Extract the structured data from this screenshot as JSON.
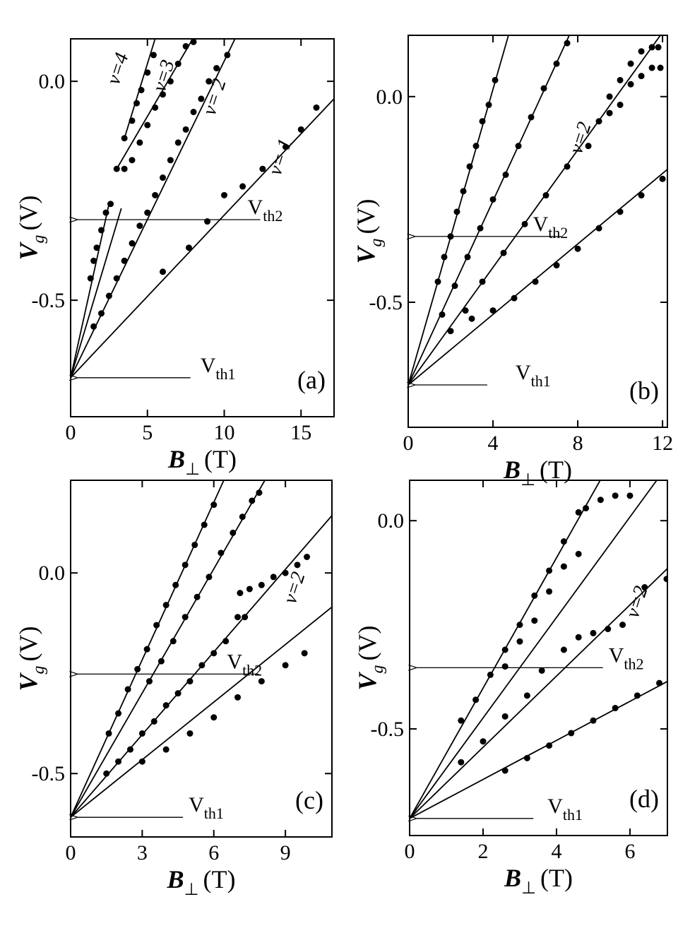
{
  "chart_data": [
    {
      "type": "scatter",
      "label": "(a)",
      "xlabel": [
        "B",
        "⊥",
        "(T)"
      ],
      "ylabel": [
        "V",
        "g",
        "(V)"
      ],
      "xlim": [
        0,
        17.15
      ],
      "ylim": [
        -0.766,
        0.097
      ],
      "xticks": [
        0,
        5,
        10,
        15
      ],
      "yticks": [
        {
          "value": -0.5,
          "label": "-0.5"
        },
        {
          "value": 0,
          "label": "0.0"
        }
      ],
      "notes": [
        "ν=4",
        "ν=3",
        "ν= 2",
        "ν= 1"
      ],
      "annotations": [
        {
          "text": [
            "V",
            "th1"
          ],
          "y": -0.677
        },
        {
          "text": [
            "V",
            "th2"
          ],
          "y": -0.316
        }
      ],
      "series": [
        {
          "mode": "markers",
          "color": "#000",
          "x": [
            6,
            7.7,
            8.9,
            10,
            11.2,
            12.5,
            14,
            15,
            16
          ],
          "values": [
            -0.435,
            -0.38,
            -0.32,
            -0.26,
            -0.24,
            -0.2,
            -0.15,
            -0.11,
            -0.06
          ]
        },
        {
          "mode": "markers",
          "color": "#000",
          "x": [
            1.5,
            2,
            2.5,
            3,
            3.5,
            4,
            4.5,
            5,
            5.5,
            6,
            6.5,
            7,
            7.5,
            8,
            8.5,
            9,
            9.5,
            10.2
          ],
          "values": [
            -0.56,
            -0.53,
            -0.49,
            -0.45,
            -0.41,
            -0.37,
            -0.33,
            -0.3,
            -0.26,
            -0.22,
            -0.18,
            -0.14,
            -0.11,
            -0.07,
            -0.04,
            0.0,
            0.03,
            0.06
          ]
        },
        {
          "mode": "markers",
          "color": "#000",
          "x": [
            3,
            3.5,
            4,
            4.5,
            5,
            5.5,
            6,
            6.5,
            7,
            7.5,
            8
          ],
          "values": [
            -0.2,
            -0.2,
            -0.18,
            -0.14,
            -0.1,
            -0.06,
            -0.03,
            0.0,
            0.04,
            0.08,
            0.09
          ]
        },
        {
          "mode": "markers",
          "color": "#000",
          "x": [
            3.5,
            4,
            4.3,
            4.6,
            5,
            5.4
          ],
          "values": [
            -0.13,
            -0.09,
            -0.05,
            -0.02,
            0.02,
            0.06
          ]
        },
        {
          "mode": "markers",
          "color": "#000",
          "x": [
            1.3,
            1.5,
            1.7,
            2,
            2.3,
            2.6
          ],
          "values": [
            -0.45,
            -0.41,
            -0.38,
            -0.34,
            -0.3,
            -0.28
          ]
        },
        {
          "mode": "line",
          "color": "#000",
          "x": [
            0,
            17.15
          ],
          "values": [
            -0.677,
            -0.04
          ]
        },
        {
          "mode": "line",
          "color": "#000",
          "x": [
            0,
            10.7
          ],
          "values": [
            -0.677,
            0.097
          ]
        },
        {
          "mode": "line",
          "color": "#000",
          "x": [
            0,
            3.3
          ],
          "values": [
            -0.677,
            -0.29
          ]
        },
        {
          "mode": "line",
          "color": "#000",
          "x": [
            0,
            2.5
          ],
          "values": [
            -0.677,
            -0.28
          ]
        },
        {
          "mode": "line",
          "color": "#000",
          "x": [
            3,
            7.95
          ],
          "values": [
            -0.2,
            0.097
          ]
        },
        {
          "mode": "line",
          "color": "#000",
          "x": [
            3.5,
            5.5
          ],
          "values": [
            -0.13,
            0.097
          ]
        }
      ]
    },
    {
      "type": "scatter",
      "label": "(b)",
      "xlabel": [
        "B",
        "⊥",
        "(T)"
      ],
      "ylabel": [
        "V",
        "g",
        "(V)"
      ],
      "xlim": [
        0,
        12.23
      ],
      "ylim": [
        -0.804,
        0.149
      ],
      "xticks": [
        0,
        4,
        8,
        12
      ],
      "yticks": [
        {
          "value": -0.5,
          "label": "-0.5"
        },
        {
          "value": 0,
          "label": "0.0"
        }
      ],
      "notes": [
        "ν=2"
      ],
      "annotations": [
        {
          "text": [
            "V",
            "th1"
          ],
          "y": -0.701
        },
        {
          "text": [
            "V",
            "th2"
          ],
          "y": -0.34
        }
      ],
      "series": [
        {
          "mode": "markers",
          "color": "#000",
          "x": [
            1.4,
            1.7,
            2,
            2.3,
            2.6,
            2.9,
            3.2,
            3.5,
            3.8,
            4.1
          ],
          "values": [
            -0.45,
            -0.39,
            -0.34,
            -0.28,
            -0.23,
            -0.17,
            -0.12,
            -0.06,
            -0.02,
            0.04
          ]
        },
        {
          "mode": "markers",
          "color": "#000",
          "x": [
            1.6,
            2.2,
            2.8,
            3.4,
            4,
            4.6,
            5.2,
            5.8,
            6.4,
            7,
            7.5
          ],
          "values": [
            -0.53,
            -0.46,
            -0.39,
            -0.32,
            -0.25,
            -0.19,
            -0.12,
            -0.05,
            0.02,
            0.08,
            0.13
          ]
        },
        {
          "mode": "markers",
          "color": "#000",
          "x": [
            2.7,
            3.5,
            4.5,
            5.5,
            6.5,
            7.5,
            8.5,
            9,
            9.5,
            10,
            10.5,
            11,
            11.5,
            11.9
          ],
          "values": [
            -0.52,
            -0.45,
            -0.38,
            -0.31,
            -0.24,
            -0.17,
            -0.12,
            -0.06,
            -0.04,
            -0.02,
            0.03,
            0.05,
            0.07,
            0.07
          ]
        },
        {
          "mode": "markers",
          "color": "#000",
          "x": [
            9.5,
            10,
            10.5,
            11,
            11.5,
            11.8
          ],
          "values": [
            0.0,
            0.04,
            0.08,
            0.11,
            0.12,
            0.12
          ]
        },
        {
          "mode": "markers",
          "color": "#000",
          "x": [
            2,
            3,
            4,
            5,
            6,
            7,
            8,
            9,
            10,
            11,
            12
          ],
          "values": [
            -0.57,
            -0.54,
            -0.52,
            -0.49,
            -0.45,
            -0.41,
            -0.37,
            -0.32,
            -0.28,
            -0.24,
            -0.2
          ]
        },
        {
          "mode": "line",
          "color": "#000",
          "x": [
            0,
            4.73
          ],
          "values": [
            -0.701,
            0.149
          ]
        },
        {
          "mode": "line",
          "color": "#000",
          "x": [
            0,
            7.6
          ],
          "values": [
            -0.701,
            0.149
          ]
        },
        {
          "mode": "line",
          "color": "#000",
          "x": [
            0,
            11.9
          ],
          "values": [
            -0.701,
            0.149
          ]
        },
        {
          "mode": "line",
          "color": "#000",
          "x": [
            0,
            12.23
          ],
          "values": [
            -0.701,
            -0.177
          ]
        }
      ]
    },
    {
      "type": "scatter",
      "label": "(c)",
      "xlabel": [
        "B",
        "⊥",
        "(T)"
      ],
      "ylabel": [
        "V",
        "g",
        "(V)"
      ],
      "xlim": [
        0,
        10.95
      ],
      "ylim": [
        -0.658,
        0.231
      ],
      "xticks": [
        0,
        3,
        6,
        9
      ],
      "yticks": [
        {
          "value": -0.5,
          "label": "-0.5"
        },
        {
          "value": 0,
          "label": "0.0"
        }
      ],
      "notes": [
        "ν=2"
      ],
      "annotations": [
        {
          "text": [
            "V",
            "th1"
          ],
          "y": -0.609
        },
        {
          "text": [
            "V",
            "th2"
          ],
          "y": -0.252
        }
      ],
      "series": [
        {
          "mode": "markers",
          "color": "#000",
          "x": [
            1.6,
            2,
            2.4,
            2.8,
            3.2,
            3.6,
            4,
            4.4,
            4.8,
            5.2,
            5.6,
            6
          ],
          "values": [
            -0.4,
            -0.35,
            -0.29,
            -0.24,
            -0.19,
            -0.13,
            -0.08,
            -0.03,
            0.02,
            0.07,
            0.12,
            0.17
          ]
        },
        {
          "mode": "markers",
          "color": "#000",
          "x": [
            3.3,
            3.8,
            4.3,
            4.8,
            5.3,
            5.8,
            6.3,
            6.8,
            7.2,
            7.6,
            7.9
          ],
          "values": [
            -0.27,
            -0.22,
            -0.17,
            -0.11,
            -0.06,
            -0.01,
            0.05,
            0.1,
            0.14,
            0.18,
            0.2
          ]
        },
        {
          "mode": "markers",
          "color": "#000",
          "x": [
            1.5,
            2,
            2.5,
            3,
            3.5,
            4,
            4.5,
            5,
            5.5,
            6,
            6.5,
            7,
            7.3
          ],
          "values": [
            -0.5,
            -0.47,
            -0.44,
            -0.4,
            -0.37,
            -0.33,
            -0.3,
            -0.27,
            -0.23,
            -0.2,
            -0.17,
            -0.11,
            -0.11
          ]
        },
        {
          "mode": "markers",
          "color": "#000",
          "x": [
            7.1,
            7.5,
            8,
            8.5,
            9,
            9.5,
            9.9
          ],
          "values": [
            -0.05,
            -0.04,
            -0.03,
            -0.01,
            0.0,
            0.02,
            0.04
          ]
        },
        {
          "mode": "markers",
          "color": "#000",
          "x": [
            3,
            4,
            5,
            6,
            7,
            8,
            9,
            9.8
          ],
          "values": [
            -0.47,
            -0.44,
            -0.4,
            -0.36,
            -0.31,
            -0.27,
            -0.23,
            -0.2
          ]
        },
        {
          "mode": "line",
          "color": "#000",
          "x": [
            0,
            6.42
          ],
          "values": [
            -0.609,
            0.231
          ]
        },
        {
          "mode": "line",
          "color": "#000",
          "x": [
            0,
            8.14
          ],
          "values": [
            -0.609,
            0.231
          ]
        },
        {
          "mode": "line",
          "color": "#000",
          "x": [
            0,
            10.95
          ],
          "values": [
            -0.609,
            0.143
          ]
        },
        {
          "mode": "line",
          "color": "#000",
          "x": [
            0,
            10.95
          ],
          "values": [
            -0.609,
            -0.085
          ]
        }
      ]
    },
    {
      "type": "scatter",
      "label": "(d)",
      "xlabel": [
        "B",
        "⊥",
        "(T)"
      ],
      "ylabel": [
        "V",
        "g",
        "(V)"
      ],
      "xlim": [
        0,
        7.02
      ],
      "ylim": [
        -0.756,
        0.097
      ],
      "xticks": [
        0,
        2,
        4,
        6
      ],
      "yticks": [
        {
          "value": -0.5,
          "label": "-0.5"
        },
        {
          "value": 0,
          "label": "0.0"
        }
      ],
      "notes": [
        "ν=2"
      ],
      "annotations": [
        {
          "text": [
            "V",
            "th1"
          ],
          "y": -0.715
        },
        {
          "text": [
            "V",
            "th2"
          ],
          "y": -0.353
        }
      ],
      "series": [
        {
          "mode": "markers",
          "color": "#000",
          "x": [
            1.4,
            1.8,
            2.2,
            2.6,
            3,
            3.4,
            3.8,
            4.2,
            4.6,
            4.8
          ],
          "values": [
            -0.48,
            -0.43,
            -0.37,
            -0.31,
            -0.25,
            -0.18,
            -0.12,
            -0.05,
            0.02,
            0.03
          ]
        },
        {
          "mode": "markers",
          "color": "#000",
          "x": [
            2.6,
            3,
            3.4,
            3.8,
            4.2,
            4.6,
            5.2,
            5.6,
            6
          ],
          "values": [
            -0.35,
            -0.29,
            -0.24,
            -0.17,
            -0.11,
            -0.08,
            0.05,
            0.06,
            0.06
          ]
        },
        {
          "mode": "markers",
          "color": "#000",
          "x": [
            1.4,
            2,
            2.6,
            3.2,
            3.6,
            4.2,
            4.6,
            5,
            5.4,
            5.8,
            6.4,
            7
          ],
          "values": [
            -0.58,
            -0.53,
            -0.47,
            -0.42,
            -0.36,
            -0.31,
            -0.28,
            -0.27,
            -0.26,
            -0.25,
            -0.16,
            -0.14
          ]
        },
        {
          "mode": "markers",
          "color": "#000",
          "x": [
            2.6,
            3.2,
            3.8,
            4.4,
            5,
            5.6,
            6.2,
            6.8
          ],
          "values": [
            -0.6,
            -0.57,
            -0.54,
            -0.51,
            -0.48,
            -0.45,
            -0.42,
            -0.39
          ]
        },
        {
          "mode": "line",
          "color": "#000",
          "x": [
            0,
            5.19
          ],
          "values": [
            -0.715,
            0.097
          ]
        },
        {
          "mode": "line",
          "color": "#000",
          "x": [
            0,
            6.73
          ],
          "values": [
            -0.715,
            0.097
          ]
        },
        {
          "mode": "line",
          "color": "#000",
          "x": [
            0,
            7.02
          ],
          "values": [
            -0.715,
            -0.115
          ]
        },
        {
          "mode": "line",
          "color": "#000",
          "x": [
            0,
            7.02
          ],
          "values": [
            -0.715,
            -0.386
          ]
        }
      ]
    }
  ]
}
